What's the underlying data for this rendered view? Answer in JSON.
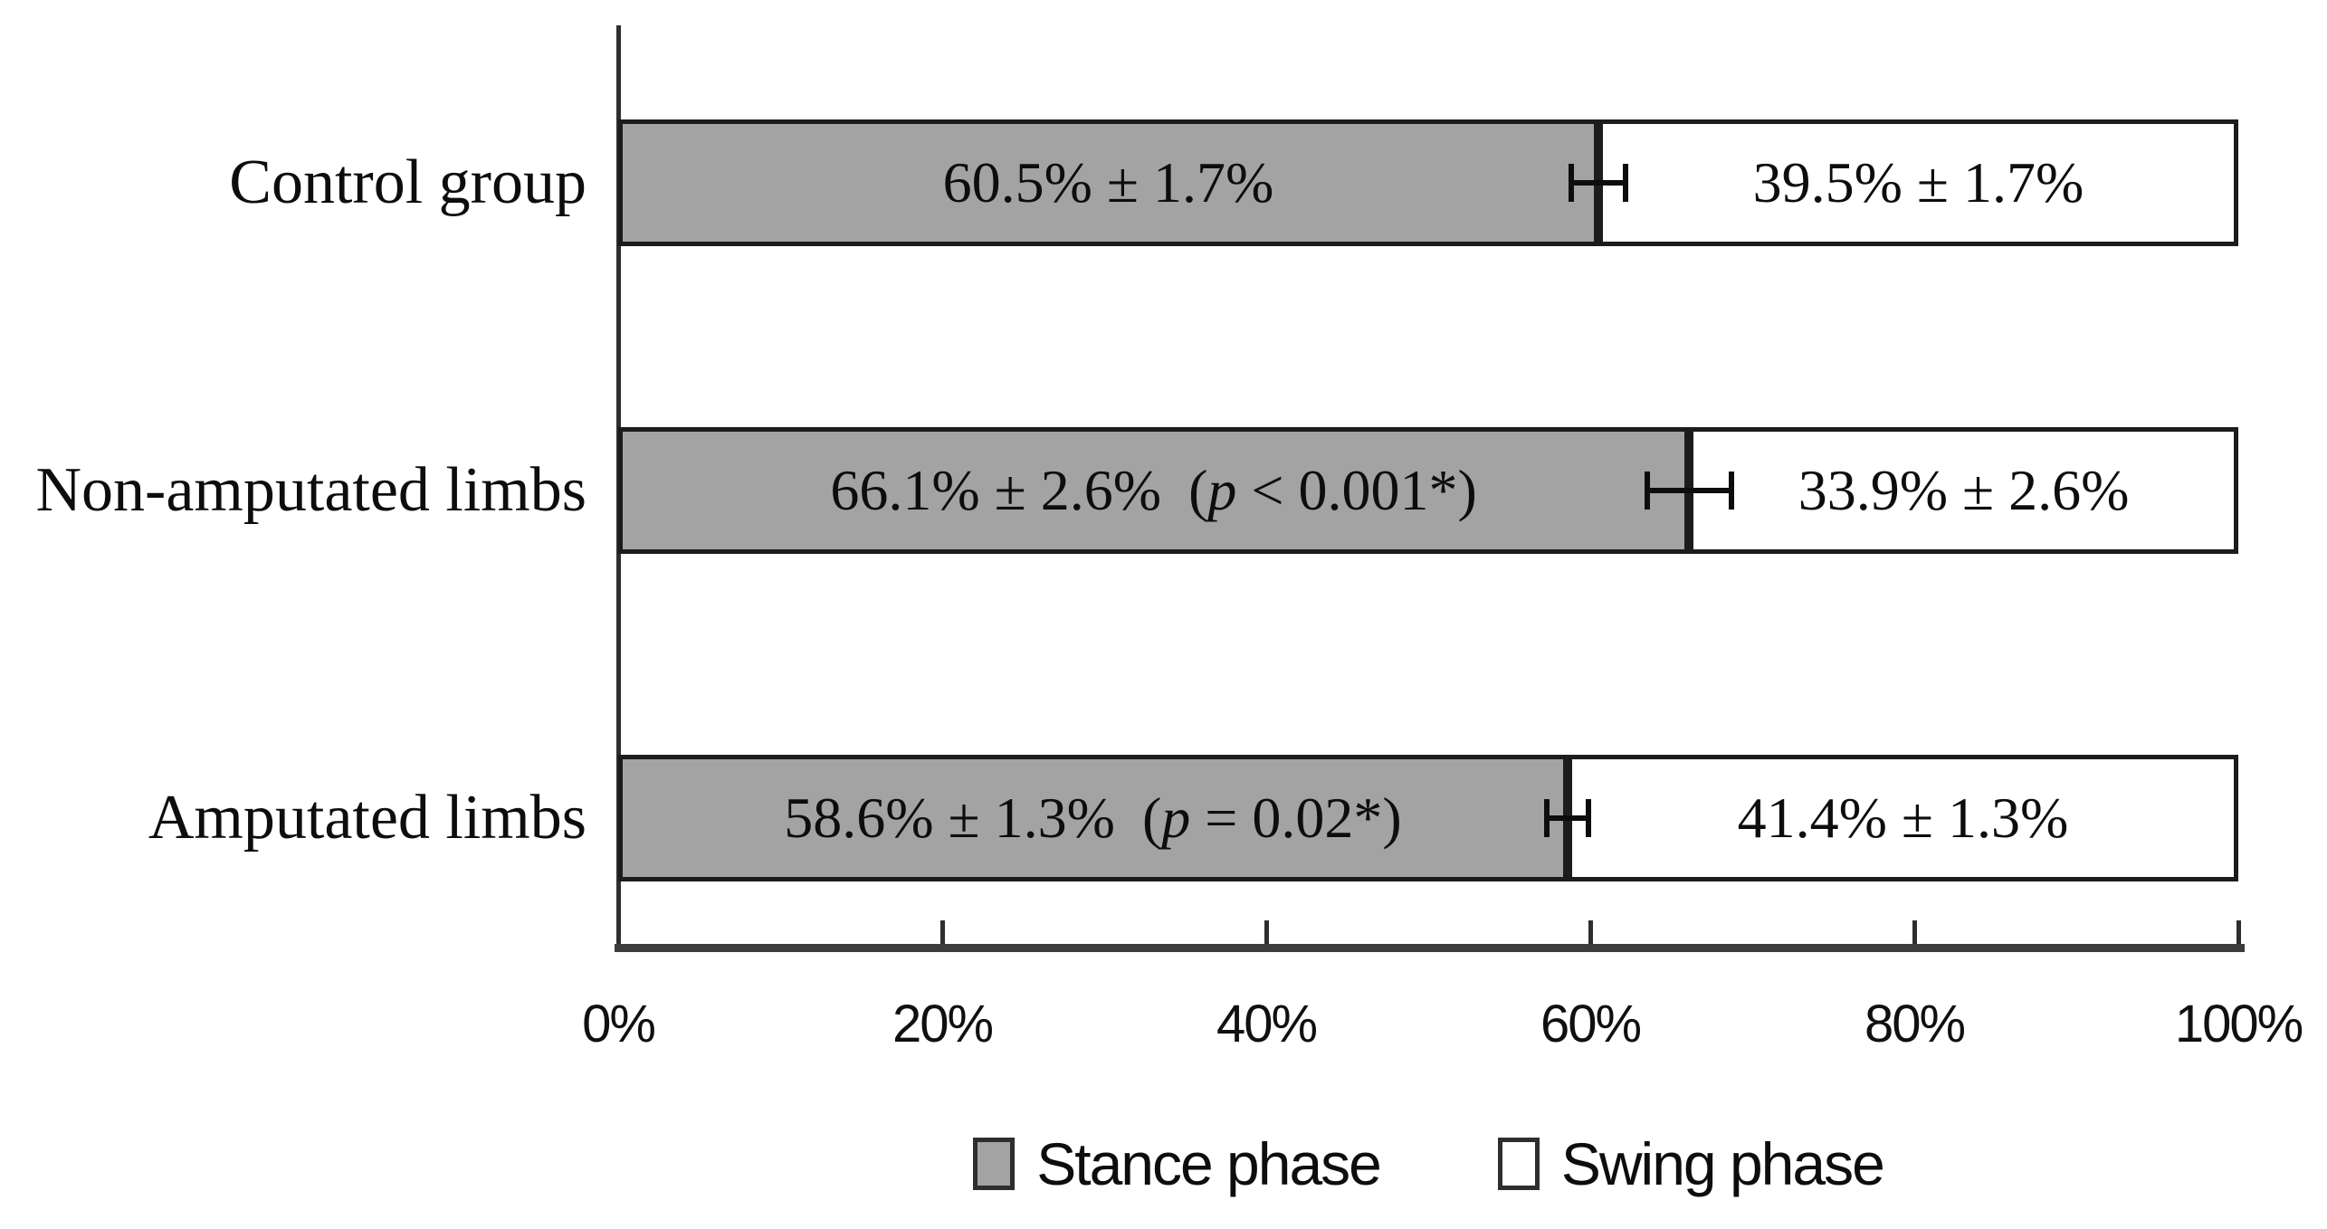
{
  "chart_data": {
    "type": "bar",
    "orientation": "horizontal",
    "stacked": true,
    "title": "",
    "xlabel": "",
    "ylabel": "",
    "xlim": [
      0,
      100
    ],
    "grid": false,
    "categories": [
      "Control group",
      "Non-amputated limbs",
      "Amputated limbs"
    ],
    "series": [
      {
        "name": "Stance phase",
        "color": "#a3a3a3",
        "values": [
          60.5,
          66.1,
          58.6
        ],
        "labels": [
          "60.5% ± 1.7%",
          "66.1% ± 2.6%",
          "58.6% ± 1.3%"
        ],
        "p_labels": [
          "",
          "(p < 0.001*)",
          "(p = 0.02*)"
        ],
        "errors": [
          1.7,
          2.6,
          1.3
        ]
      },
      {
        "name": "Swing phase",
        "color": "#ffffff",
        "values": [
          39.5,
          33.9,
          41.4
        ],
        "labels": [
          "39.5% ± 1.7%",
          "33.9% ± 2.6%",
          "41.4% ± 1.3%"
        ],
        "p_labels": [
          "",
          "",
          ""
        ],
        "errors": []
      }
    ],
    "x_ticks": [
      {
        "label": "0%",
        "value": 0
      },
      {
        "label": "20%",
        "value": 20
      },
      {
        "label": "40%",
        "value": 40
      },
      {
        "label": "60%",
        "value": 60
      },
      {
        "label": "80%",
        "value": 80
      },
      {
        "label": "100%",
        "value": 100
      }
    ],
    "legend": [
      {
        "label": "Stance phase",
        "color": "#a3a3a3"
      },
      {
        "label": "Swing phase",
        "color": "#ffffff"
      }
    ],
    "legend_position": "bottom"
  },
  "colors": {
    "bar_border": "#1c1c1c",
    "axis": "#3c3c3c",
    "text": "#0d0d0d",
    "background": "#ffffff"
  }
}
